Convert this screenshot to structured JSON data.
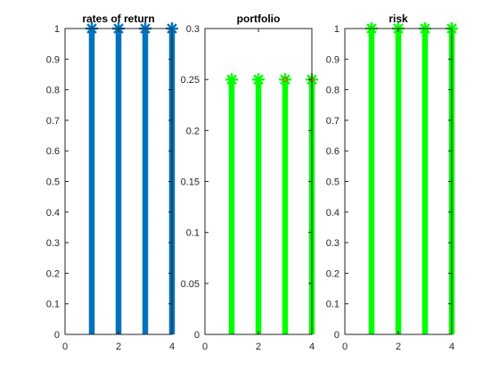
{
  "chart_data": [
    {
      "type": "stem",
      "title": "rates of return",
      "xlabel": "",
      "ylabel": "",
      "xlim": [
        0,
        4
      ],
      "ylim": [
        0,
        1
      ],
      "x_ticks": [
        "0",
        "2",
        "4"
      ],
      "y_ticks": [
        "0",
        "0.1",
        "0.2",
        "0.3",
        "0.4",
        "0.5",
        "0.6",
        "0.7",
        "0.8",
        "0.9",
        "1"
      ],
      "grid": false,
      "x": [
        1,
        2,
        3,
        4
      ],
      "y": [
        1,
        1,
        1,
        1
      ],
      "color": "#0072BD",
      "marker_color": "#0072BD"
    },
    {
      "type": "stem",
      "title": "portfolio",
      "xlabel": "",
      "ylabel": "",
      "xlim": [
        0,
        4
      ],
      "ylim": [
        0,
        0.3
      ],
      "x_ticks": [
        "0",
        "2",
        "4"
      ],
      "y_ticks": [
        "0",
        "0.05",
        "0.1",
        "0.15",
        "0.2",
        "0.25",
        "0.3"
      ],
      "grid": false,
      "x": [
        1,
        2,
        3,
        4
      ],
      "y": [
        0.25,
        0.25,
        0.25,
        0.25
      ],
      "color": "#00FF00",
      "marker_color": "#00FF00",
      "overlay_marker_color": "#D95319",
      "overlay_points": [
        3,
        4
      ]
    },
    {
      "type": "stem",
      "title": "risk",
      "xlabel": "",
      "ylabel": "",
      "xlim": [
        0,
        4
      ],
      "ylim": [
        0,
        1
      ],
      "x_ticks": [
        "0",
        "2",
        "4"
      ],
      "y_ticks": [
        "0",
        "0.1",
        "0.2",
        "0.3",
        "0.4",
        "0.5",
        "0.6",
        "0.7",
        "0.8",
        "0.9",
        "1"
      ],
      "grid": false,
      "x": [
        1,
        2,
        3,
        4
      ],
      "y": [
        1,
        1,
        1,
        1
      ],
      "color": "#00FF00",
      "marker_color": "#00FF00"
    }
  ]
}
